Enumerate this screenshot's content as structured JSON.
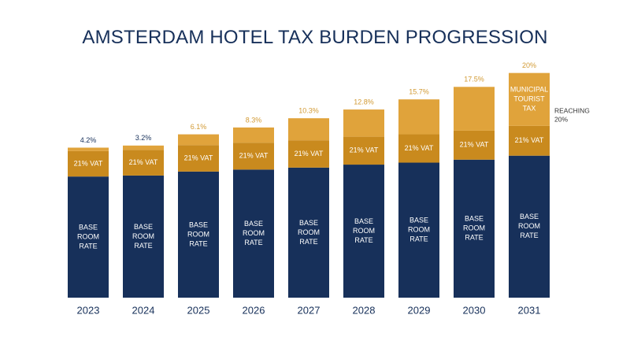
{
  "chart_data": {
    "type": "bar",
    "title": "AMSTERDAM HOTEL TAX BURDEN PROGRESSION",
    "categories": [
      "2023",
      "2024",
      "2025",
      "2026",
      "2027",
      "2028",
      "2029",
      "2030",
      "2031"
    ],
    "series": [
      {
        "name": "BASE ROOM RATE",
        "values": [
          122,
          123,
          127,
          129,
          131,
          134,
          136,
          139,
          143
        ],
        "label_lines": [
          "BASE",
          "ROOM",
          "RATE"
        ]
      },
      {
        "name": "21% VAT",
        "values": [
          25.6,
          25.8,
          26.7,
          27.1,
          27.5,
          28.1,
          28.6,
          29.2,
          30
        ]
      },
      {
        "name": "MUNICIPAL TOURIST TAX",
        "values": [
          3.5,
          4.4,
          10.8,
          15.3,
          22.2,
          27.4,
          35.1,
          44.1,
          53.3
        ],
        "label_lines": [
          "MUNICIPAL",
          "TOURIST",
          "TAX"
        ]
      }
    ],
    "top_labels": [
      "4.2%",
      "3.2%",
      "6.1%",
      "8.3%",
      "10.3%",
      "12.8%",
      "15.7%",
      "17.5%",
      "20%"
    ],
    "annotation": {
      "category": "2031",
      "lines": [
        "REACHING",
        "20%"
      ]
    },
    "ylim": [
      0,
      230
    ],
    "grid": false,
    "colors": {
      "base": "#17305a",
      "vat": "#c98a1e",
      "tax": "#e0a33b",
      "top_label": "#d29a34",
      "top_label_early": "#17305a",
      "axis_text": "#17305a",
      "title": "#17305a"
    }
  }
}
